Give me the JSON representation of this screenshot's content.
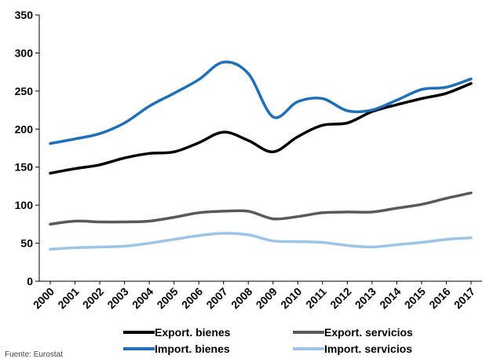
{
  "chart_data": {
    "type": "line",
    "title": "",
    "xlabel": "",
    "ylabel": "",
    "x": [
      "2000",
      "2001",
      "2002",
      "2003",
      "2004",
      "2005",
      "2006",
      "2007",
      "2008",
      "2009",
      "2010",
      "2011",
      "2012",
      "2013",
      "2014",
      "2015",
      "2016",
      "2017"
    ],
    "ylim": [
      0,
      350
    ],
    "yticks": [
      0,
      50,
      100,
      150,
      200,
      250,
      300,
      350
    ],
    "grid": false,
    "legend_position": "bottom",
    "series": [
      {
        "name": "Export. bienes",
        "color": "#000000",
        "values": [
          142,
          148,
          153,
          162,
          168,
          170,
          182,
          196,
          185,
          170,
          190,
          205,
          208,
          223,
          232,
          240,
          247,
          260
        ]
      },
      {
        "name": "Export. servicios",
        "color": "#595959",
        "values": [
          75,
          79,
          78,
          78,
          79,
          84,
          90,
          92,
          92,
          82,
          85,
          90,
          91,
          91,
          96,
          101,
          109,
          116
        ]
      },
      {
        "name": "Import. bienes",
        "color": "#1F6FB8",
        "values": [
          181,
          187,
          194,
          208,
          230,
          247,
          265,
          288,
          273,
          216,
          236,
          240,
          224,
          225,
          238,
          252,
          255,
          266
        ]
      },
      {
        "name": "Import. servicios",
        "color": "#9DC3E6",
        "values": [
          42,
          44,
          45,
          46,
          50,
          55,
          60,
          63,
          61,
          53,
          52,
          51,
          47,
          45,
          48,
          51,
          55,
          57
        ]
      }
    ]
  },
  "source_text": "Fuente: Eurostat"
}
